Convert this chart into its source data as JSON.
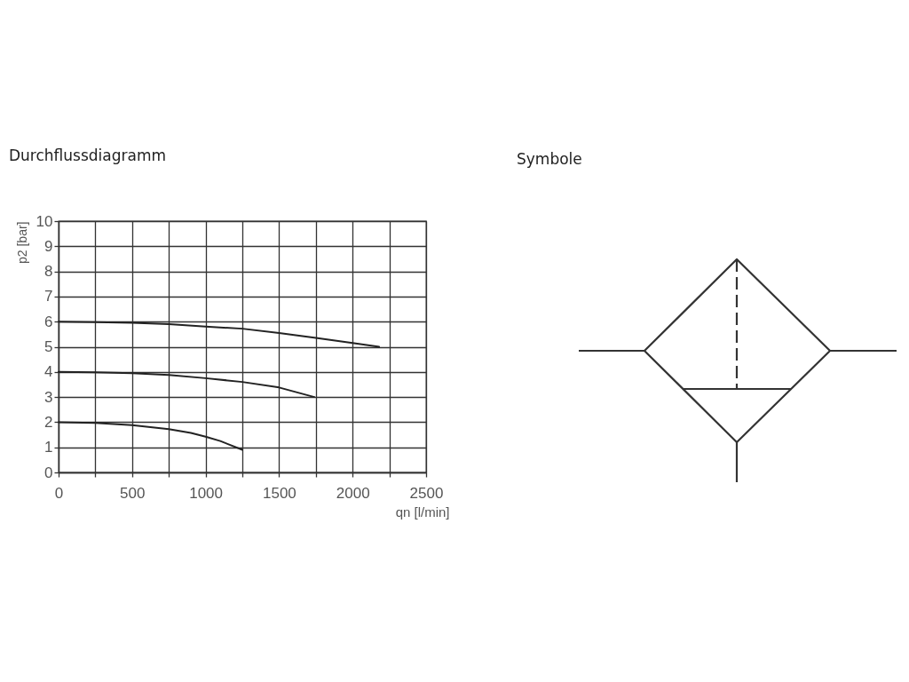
{
  "chart_data": [
    {
      "type": "line",
      "title": "Durchflussdiagramm",
      "xlabel": "qn [l/min]",
      "ylabel": "p2 [bar]",
      "xlim": [
        0,
        2500
      ],
      "ylim": [
        0,
        10
      ],
      "xticks": [
        0,
        {
          "value": 250,
          "label": null
        },
        500,
        {
          "value": 750,
          "label": null
        },
        1000,
        {
          "value": 1250,
          "label": null
        },
        1500,
        {
          "value": 1750,
          "label": null
        },
        2000,
        {
          "value": 2250,
          "label": null
        },
        2500
      ],
      "yticks": [
        0,
        1,
        2,
        3,
        4,
        5,
        6,
        7,
        8,
        9,
        10
      ],
      "grid": true,
      "line_style": "solid",
      "series": [
        {
          "color": "#222222",
          "x": [
            0,
            250,
            500,
            750,
            1000,
            1250,
            1500,
            1750,
            2000,
            2180
          ],
          "values": [
            6,
            5.98,
            5.95,
            5.9,
            5.8,
            5.72,
            5.55,
            5.35,
            5.15,
            5.0
          ]
        },
        {
          "color": "#222222",
          "x": [
            0,
            250,
            500,
            750,
            1000,
            1250,
            1500,
            1740
          ],
          "values": [
            4,
            3.98,
            3.95,
            3.88,
            3.75,
            3.6,
            3.38,
            3.0
          ]
        },
        {
          "color": "#222222",
          "x": [
            0,
            250,
            500,
            750,
            900,
            1000,
            1100,
            1250
          ],
          "values": [
            2,
            1.97,
            1.88,
            1.72,
            1.57,
            1.42,
            1.25,
            0.9
          ]
        }
      ]
    },
    {
      "type": "other",
      "title": "Symbole"
    }
  ]
}
